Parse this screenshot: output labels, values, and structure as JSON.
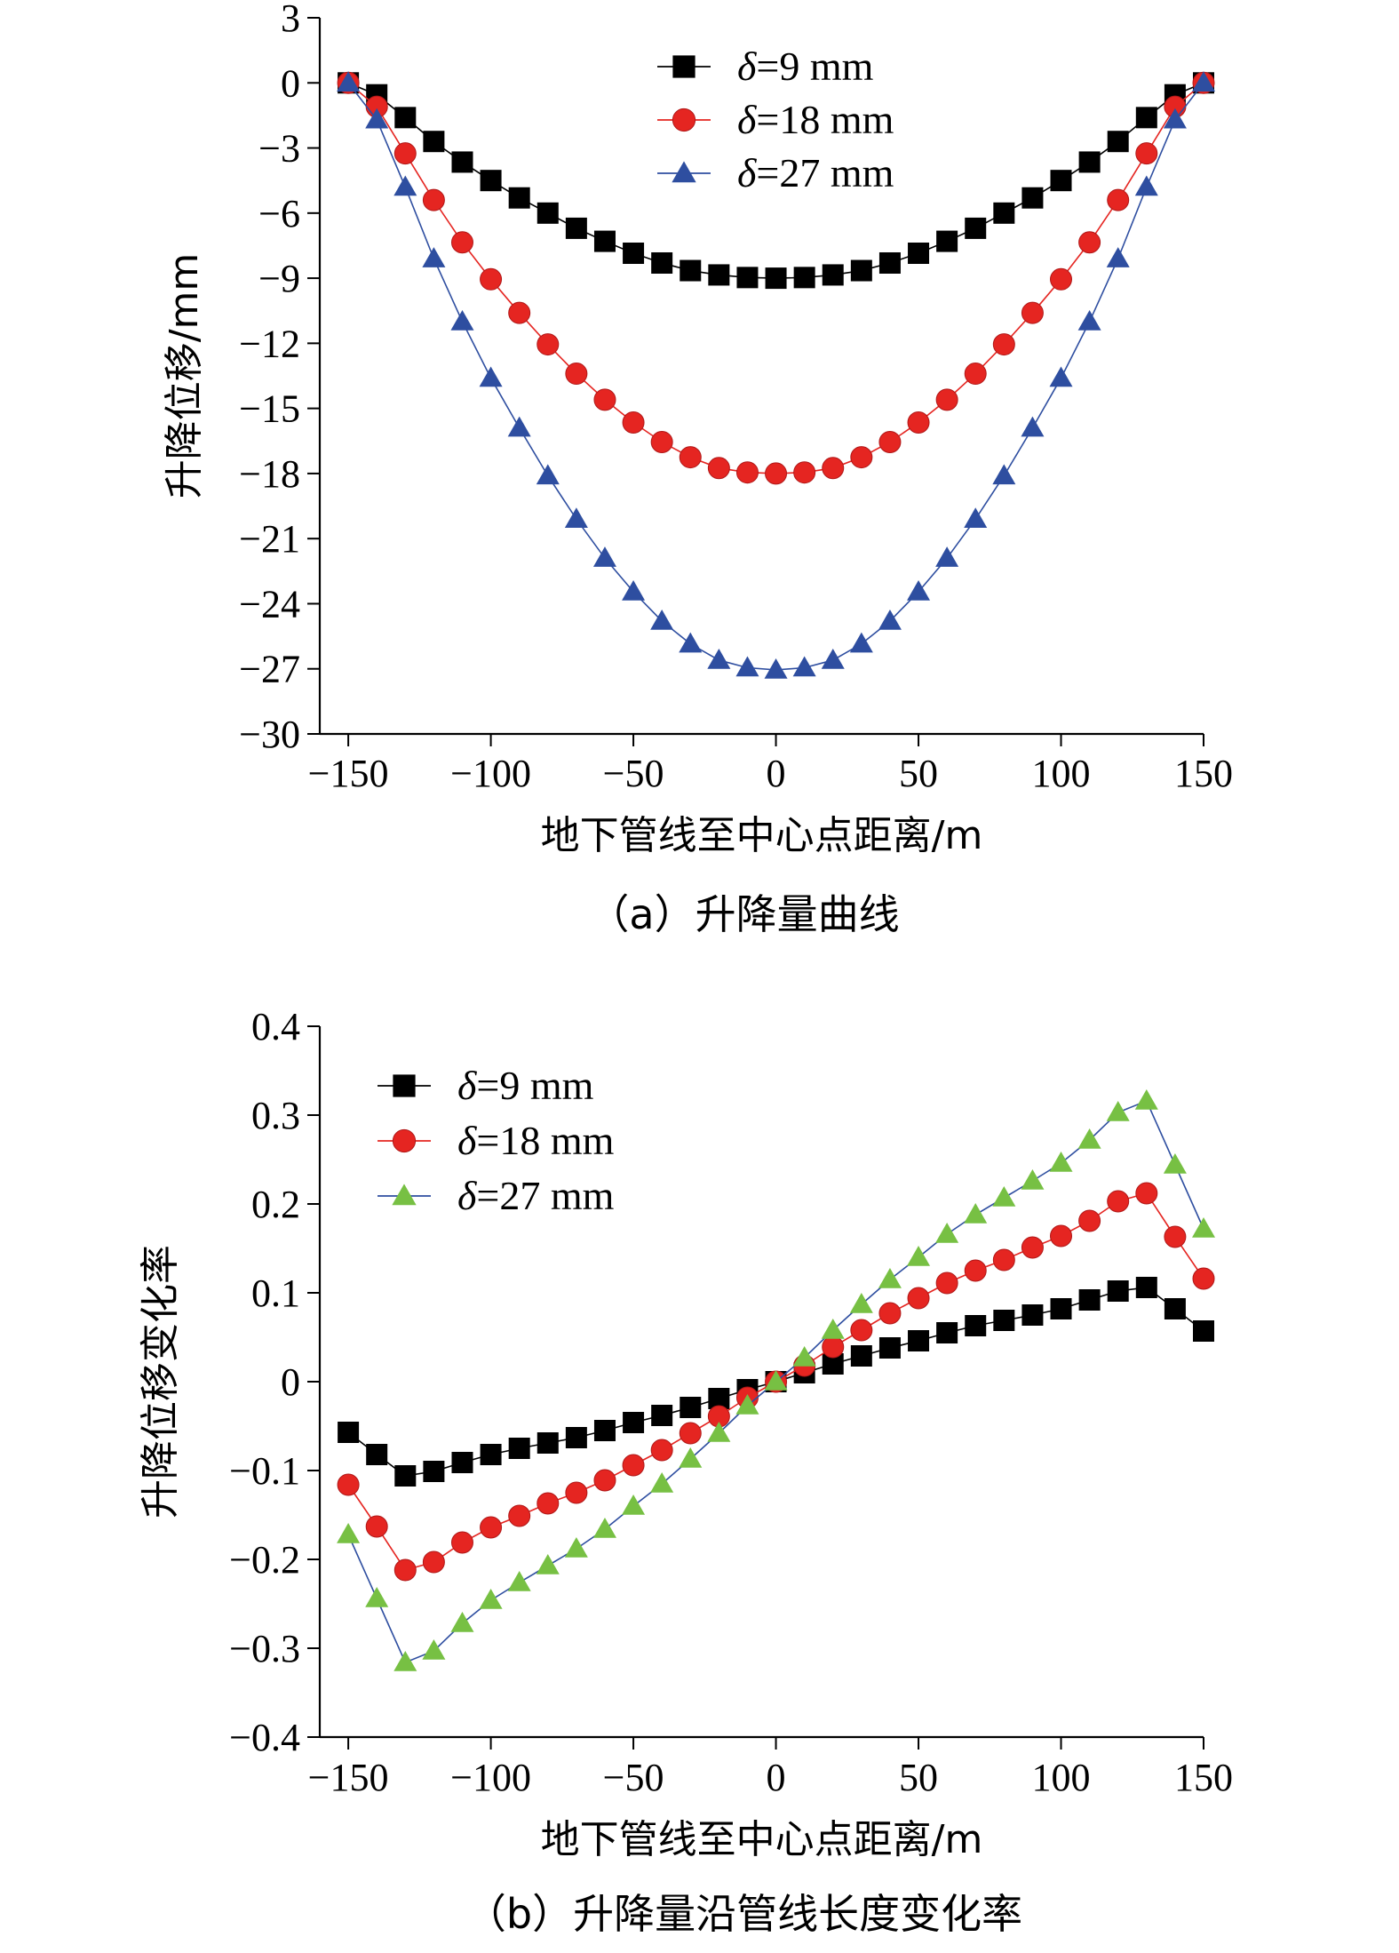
{
  "chart_data": [
    {
      "type": "line",
      "caption": "（a）升降量曲线",
      "xlabel": "地下管线至中心点距离/m",
      "ylabel": "升降位移/mm",
      "xlim": [
        -160,
        150
      ],
      "ylim": [
        -30,
        3
      ],
      "xticks": [
        -150,
        -100,
        -50,
        0,
        50,
        100,
        150
      ],
      "xtick_labels": [
        "−150",
        "−100",
        "−50",
        "0",
        "50",
        "100",
        "150"
      ],
      "yticks": [
        3,
        0,
        -3,
        -6,
        -9,
        -12,
        -15,
        -18,
        -21,
        -24,
        -27,
        -30
      ],
      "ytick_labels": [
        "3",
        "0",
        "−3",
        "−6",
        "−9",
        "−12",
        "−15",
        "−18",
        "−21",
        "−24",
        "−27",
        "−30"
      ],
      "legend_position": "top-center",
      "x": [
        -150,
        -140,
        -130,
        -120,
        -110,
        -100,
        -90,
        -80,
        -70,
        -60,
        -50,
        -40,
        -30,
        -20,
        -10,
        0,
        10,
        20,
        30,
        40,
        50,
        60,
        70,
        80,
        90,
        100,
        110,
        120,
        130,
        140,
        150
      ],
      "series": [
        {
          "name": "δ=9 mm",
          "legend_sym": "δ",
          "legend_rest": "=9 mm",
          "color": "#000000",
          "marker": "square",
          "values": [
            0,
            -0.55,
            -1.6,
            -2.7,
            -3.65,
            -4.5,
            -5.3,
            -6.0,
            -6.7,
            -7.3,
            -7.85,
            -8.3,
            -8.65,
            -8.85,
            -8.97,
            -9.0,
            -8.97,
            -8.85,
            -8.65,
            -8.3,
            -7.85,
            -7.3,
            -6.7,
            -6.0,
            -5.3,
            -4.5,
            -3.65,
            -2.7,
            -1.6,
            -0.55,
            0
          ]
        },
        {
          "name": "δ=18 mm",
          "legend_sym": "δ",
          "legend_rest": "=18 mm",
          "color": "#e52521",
          "marker": "circle",
          "values": [
            0,
            -1.1,
            -3.25,
            -5.4,
            -7.35,
            -9.05,
            -10.6,
            -12.05,
            -13.4,
            -14.6,
            -15.65,
            -16.55,
            -17.25,
            -17.75,
            -17.95,
            -18.0,
            -17.95,
            -17.75,
            -17.25,
            -16.55,
            -15.65,
            -14.6,
            -13.4,
            -12.05,
            -10.6,
            -9.05,
            -7.35,
            -5.4,
            -3.25,
            -1.1,
            0
          ]
        },
        {
          "name": "δ=27 mm",
          "legend_sym": "δ",
          "legend_rest": "=27 mm",
          "color": "#2e4ea0",
          "marker": "triangle",
          "values": [
            0,
            -1.7,
            -4.8,
            -8.1,
            -11.0,
            -13.6,
            -15.9,
            -18.1,
            -20.1,
            -21.9,
            -23.45,
            -24.8,
            -25.85,
            -26.6,
            -26.95,
            -27.05,
            -26.95,
            -26.6,
            -25.85,
            -24.8,
            -23.45,
            -21.9,
            -20.1,
            -18.1,
            -15.9,
            -13.6,
            -11.0,
            -8.1,
            -4.8,
            -1.7,
            0
          ]
        }
      ]
    },
    {
      "type": "line",
      "caption": "（b）升降量沿管线长度变化率",
      "xlabel": "地下管线至中心点距离/m",
      "ylabel": "升降位移变化率",
      "xlim": [
        -160,
        150
      ],
      "ylim": [
        -0.4,
        0.4
      ],
      "xticks": [
        -150,
        -100,
        -50,
        0,
        50,
        100,
        150
      ],
      "xtick_labels": [
        "−150",
        "−100",
        "−50",
        "0",
        "50",
        "100",
        "150"
      ],
      "yticks": [
        0.4,
        0.3,
        0.2,
        0.1,
        0,
        -0.1,
        -0.2,
        -0.3,
        -0.4
      ],
      "ytick_labels": [
        "0.4",
        "0.3",
        "0.2",
        "0.1",
        "0",
        "−0.1",
        "−0.2",
        "−0.3",
        "−0.4"
      ],
      "legend_position": "top-left",
      "x": [
        -150,
        -140,
        -130,
        -120,
        -110,
        -100,
        -90,
        -80,
        -70,
        -60,
        -50,
        -40,
        -30,
        -20,
        -10,
        0,
        10,
        20,
        30,
        40,
        50,
        60,
        70,
        80,
        90,
        100,
        110,
        120,
        130,
        140,
        150
      ],
      "series": [
        {
          "name": "δ=9 mm",
          "legend_sym": "δ",
          "legend_rest": "=9 mm",
          "color": "#000000",
          "marker": "square",
          "values": [
            -0.057,
            -0.082,
            -0.106,
            -0.101,
            -0.091,
            -0.082,
            -0.075,
            -0.069,
            -0.063,
            -0.055,
            -0.046,
            -0.038,
            -0.029,
            -0.019,
            -0.009,
            0,
            0.01,
            0.02,
            0.029,
            0.038,
            0.046,
            0.055,
            0.063,
            0.069,
            0.075,
            0.082,
            0.092,
            0.102,
            0.106,
            0.082,
            0.057
          ]
        },
        {
          "name": "δ=18 mm",
          "legend_sym": "δ",
          "legend_rest": "=18 mm",
          "color": "#e52521",
          "marker": "circle",
          "values": [
            -0.116,
            -0.163,
            -0.212,
            -0.203,
            -0.181,
            -0.164,
            -0.151,
            -0.137,
            -0.125,
            -0.111,
            -0.094,
            -0.077,
            -0.058,
            -0.039,
            -0.018,
            0,
            0.018,
            0.039,
            0.058,
            0.077,
            0.094,
            0.111,
            0.125,
            0.137,
            0.151,
            0.164,
            0.181,
            0.203,
            0.212,
            0.163,
            0.116
          ]
        },
        {
          "name": "δ=27 mm",
          "legend_sym": "δ",
          "legend_rest": "=27 mm",
          "color": "#77c043",
          "marker": "triangle",
          "values": [
            -0.172,
            -0.244,
            -0.316,
            -0.303,
            -0.272,
            -0.246,
            -0.226,
            -0.207,
            -0.188,
            -0.166,
            -0.14,
            -0.115,
            -0.087,
            -0.058,
            -0.027,
            0,
            0.027,
            0.058,
            0.087,
            0.115,
            0.14,
            0.166,
            0.188,
            0.207,
            0.226,
            0.246,
            0.272,
            0.303,
            0.316,
            0.244,
            0.172
          ]
        }
      ]
    }
  ]
}
